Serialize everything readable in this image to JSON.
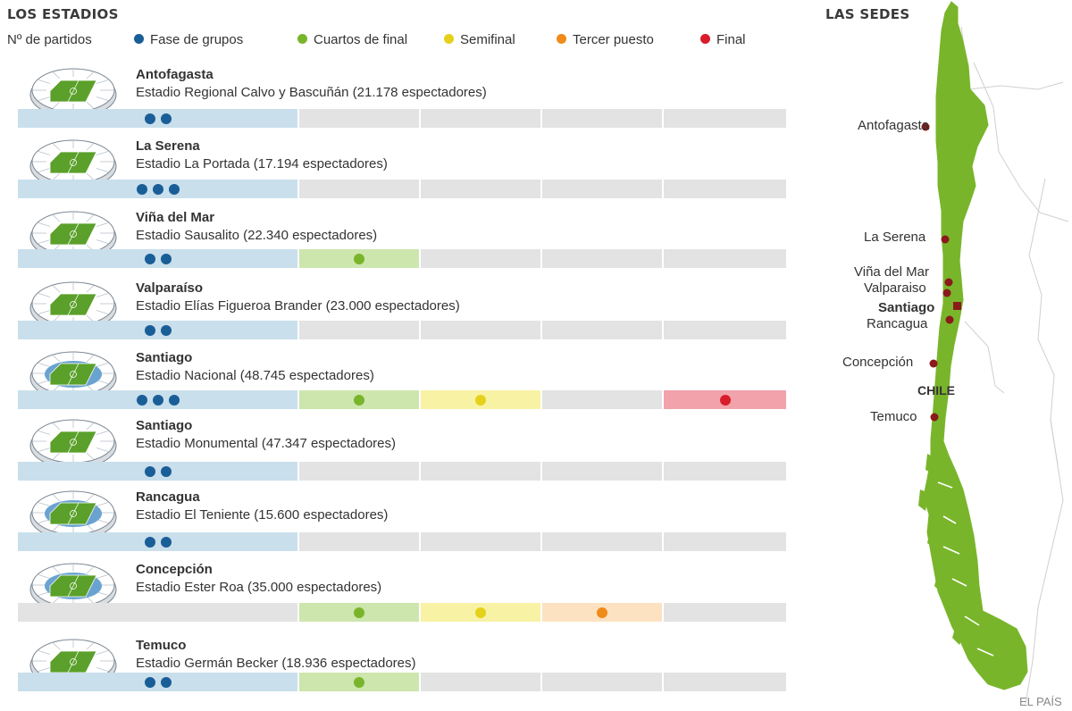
{
  "titles": {
    "left": "LOS ESTADIOS",
    "right": "LAS SEDES"
  },
  "legend": {
    "label": "Nº de partidos",
    "items": [
      {
        "key": "grupos",
        "label": "Fase de grupos",
        "color": "#1a5e97"
      },
      {
        "key": "cuartos",
        "label": "Cuartos de final",
        "color": "#79b52b"
      },
      {
        "key": "semi",
        "label": "Semifinal",
        "color": "#e5d11a"
      },
      {
        "key": "tercer",
        "label": "Tercer puesto",
        "color": "#f08a18"
      },
      {
        "key": "final",
        "label": "Final",
        "color": "#d81c2b"
      }
    ]
  },
  "stage_colors": {
    "grupos": {
      "bg": "#c9dfec",
      "dot": "#1a5e97"
    },
    "cuartos": {
      "bg": "#cde6ad",
      "dot": "#79b52b"
    },
    "semi": {
      "bg": "#f8f2a5",
      "dot": "#e5d11a"
    },
    "tercer": {
      "bg": "#fde2c2",
      "dot": "#f08a18"
    },
    "final": {
      "bg": "#f2a2ab",
      "dot": "#d81c2b"
    },
    "empty": {
      "bg": "#e3e3e3"
    }
  },
  "stadiums": [
    {
      "city": "Antofagasta",
      "stadium": "Estadio Regional Calvo  y Bascuñán (21.178 espectadores)",
      "matches": {
        "grupos": 2,
        "cuartos": 0,
        "semi": 0,
        "tercer": 0,
        "final": 0
      }
    },
    {
      "city": "La Serena",
      "stadium": "Estadio La Portada (17.194 espectadores)",
      "matches": {
        "grupos": 3,
        "cuartos": 0,
        "semi": 0,
        "tercer": 0,
        "final": 0
      }
    },
    {
      "city": "Viña del Mar",
      "stadium": "Estadio Sausalito (22.340  espectadores)",
      "matches": {
        "grupos": 2,
        "cuartos": 1,
        "semi": 0,
        "tercer": 0,
        "final": 0
      }
    },
    {
      "city": "Valparaíso",
      "stadium": "Estadio Elías Figueroa Brander (23.000 espectadores)",
      "matches": {
        "grupos": 2,
        "cuartos": 0,
        "semi": 0,
        "tercer": 0,
        "final": 0
      }
    },
    {
      "city": "Santiago",
      "stadium": "Estadio Nacional (48.745 espectadores)",
      "matches": {
        "grupos": 3,
        "cuartos": 1,
        "semi": 1,
        "tercer": 0,
        "final": 1
      }
    },
    {
      "city": "Santiago",
      "stadium": "Estadio Monumental (47.347 espectadores)",
      "matches": {
        "grupos": 2,
        "cuartos": 0,
        "semi": 0,
        "tercer": 0,
        "final": 0
      }
    },
    {
      "city": "Rancagua",
      "stadium": "Estadio El Teniente (15.600 espectadores)",
      "matches": {
        "grupos": 2,
        "cuartos": 0,
        "semi": 0,
        "tercer": 0,
        "final": 0
      }
    },
    {
      "city": "Concepción",
      "stadium": "Estadio Ester Roa (35.000 espectadores)",
      "matches": {
        "grupos": 0,
        "cuartos": 1,
        "semi": 1,
        "tercer": 1,
        "final": 0
      }
    },
    {
      "city": "Temuco",
      "stadium": "Estadio Germán Becker (18.936 espectadores)",
      "matches": {
        "grupos": 2,
        "cuartos": 1,
        "semi": 0,
        "tercer": 0,
        "final": 0
      }
    }
  ],
  "map": {
    "land_color": "#79b52b",
    "marker_color": "#8b1a1a",
    "cities": [
      "Antofagasta",
      "La Serena",
      "Viña del Mar",
      "Valparaiso",
      "Santiago",
      "Rancagua",
      "Concepción",
      "Temuco"
    ],
    "country": "CHILE"
  },
  "credit": "EL PAÍS"
}
